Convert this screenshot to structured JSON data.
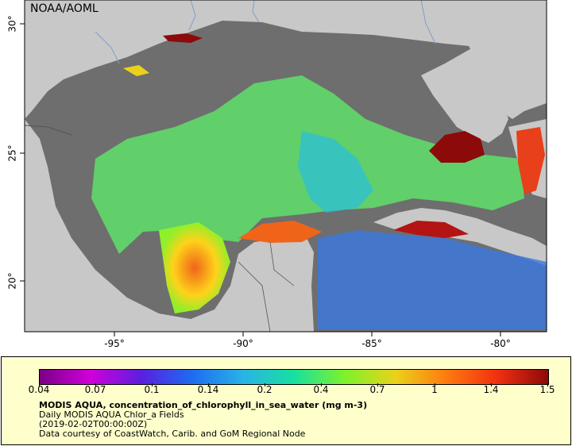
{
  "map": {
    "credit": "NOAA/AOML",
    "x_ticks": [
      "-95°",
      "-90°",
      "-85°",
      "-80°"
    ],
    "y_ticks": [
      "30°",
      "25°",
      "20°"
    ],
    "colors": {
      "land": "#c8c8c8",
      "no_data": "#6e6e6e",
      "river": "#7fa0c8",
      "border": "#555555"
    }
  },
  "legend": {
    "colorbar_ticks": [
      "0.04",
      "0.07",
      "0.1",
      "0.14",
      "0.2",
      "0.4",
      "0.7",
      "1",
      "1.4",
      "1.5"
    ],
    "title": "MODIS AQUA, concentration_of_chlorophyll_in_sea_water (mg m-3)",
    "line2": "Daily MODIS AQUA Chlor_a Fields",
    "line3": "(2019-02-02T00:00:00Z)",
    "line4": "Data courtesy of CoastWatch, Carib. and GoM Regional Node"
  }
}
